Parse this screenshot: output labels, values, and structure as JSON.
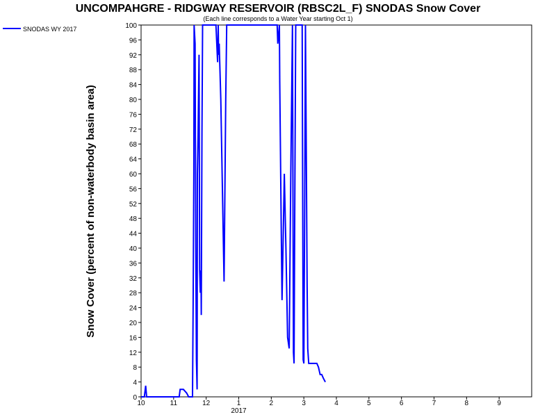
{
  "chart_data": {
    "type": "line",
    "title": "UNCOMPAHGRE - RIDGWAY RESERVOIR (RBSC2L_F) SNODAS Snow Cover",
    "subtitle": "(Each line corresponds to a Water Year starting Oct 1)",
    "ylabel": "Snow Cover (percent of non-waterbody basin area)",
    "xlabel": "",
    "ylim": [
      0,
      100
    ],
    "xlim": [
      0,
      12
    ],
    "x_unit_note": "months since Oct 1 of the water year",
    "x_ticks": [
      {
        "x": 0,
        "label": "10"
      },
      {
        "x": 1,
        "label": "11"
      },
      {
        "x": 2,
        "label": "12"
      },
      {
        "x": 3,
        "label": "1"
      },
      {
        "x": 4,
        "label": "2"
      },
      {
        "x": 5,
        "label": "3"
      },
      {
        "x": 6,
        "label": "4"
      },
      {
        "x": 7,
        "label": "5"
      },
      {
        "x": 8,
        "label": "6"
      },
      {
        "x": 9,
        "label": "7"
      },
      {
        "x": 10,
        "label": "8"
      },
      {
        "x": 11,
        "label": "9"
      }
    ],
    "x_year_label": {
      "x": 3,
      "label": "2017"
    },
    "y_ticks": [
      0,
      4,
      8,
      12,
      16,
      20,
      24,
      28,
      32,
      36,
      40,
      44,
      48,
      52,
      56,
      60,
      64,
      68,
      72,
      76,
      80,
      84,
      88,
      92,
      96,
      100
    ],
    "grid": false,
    "legend": {
      "position": "top-left",
      "entries": [
        "SNODAS WY 2017"
      ]
    },
    "colors": {
      "series": "#0000ff",
      "axis": "#000000",
      "background": "#ffffff"
    },
    "series": [
      {
        "name": "SNODAS WY 2017",
        "points": [
          [
            0.0,
            0
          ],
          [
            0.1,
            0
          ],
          [
            0.14,
            3
          ],
          [
            0.17,
            0
          ],
          [
            0.2,
            0
          ],
          [
            1.0,
            0
          ],
          [
            1.17,
            0
          ],
          [
            1.2,
            2
          ],
          [
            1.3,
            2
          ],
          [
            1.4,
            1
          ],
          [
            1.46,
            0
          ],
          [
            1.58,
            0
          ],
          [
            1.6,
            25
          ],
          [
            1.62,
            60
          ],
          [
            1.63,
            100
          ],
          [
            1.66,
            95
          ],
          [
            1.68,
            40
          ],
          [
            1.7,
            10
          ],
          [
            1.72,
            2
          ],
          [
            1.73,
            60
          ],
          [
            1.75,
            70
          ],
          [
            1.78,
            92
          ],
          [
            1.8,
            34
          ],
          [
            1.82,
            28
          ],
          [
            1.84,
            34
          ],
          [
            1.85,
            22
          ],
          [
            1.87,
            71
          ],
          [
            1.89,
            100
          ],
          [
            2.0,
            100
          ],
          [
            2.3,
            100
          ],
          [
            2.35,
            90
          ],
          [
            2.37,
            100
          ],
          [
            2.38,
            92
          ],
          [
            2.4,
            95
          ],
          [
            2.45,
            80
          ],
          [
            2.5,
            55
          ],
          [
            2.55,
            31
          ],
          [
            2.6,
            80
          ],
          [
            2.63,
            100
          ],
          [
            3.5,
            100
          ],
          [
            4.0,
            100
          ],
          [
            4.18,
            100
          ],
          [
            4.2,
            95
          ],
          [
            4.25,
            100
          ],
          [
            4.26,
            85
          ],
          [
            4.3,
            50
          ],
          [
            4.33,
            26
          ],
          [
            4.36,
            40
          ],
          [
            4.4,
            60
          ],
          [
            4.45,
            40
          ],
          [
            4.5,
            16
          ],
          [
            4.55,
            13
          ],
          [
            4.6,
            60
          ],
          [
            4.65,
            100
          ],
          [
            4.68,
            12
          ],
          [
            4.7,
            9
          ],
          [
            4.72,
            50
          ],
          [
            4.75,
            100
          ],
          [
            4.8,
            100
          ],
          [
            4.85,
            100
          ],
          [
            4.9,
            100
          ],
          [
            4.92,
            100
          ],
          [
            4.95,
            100
          ],
          [
            4.98,
            10
          ],
          [
            5.0,
            9
          ],
          [
            5.03,
            60
          ],
          [
            5.05,
            100
          ],
          [
            5.08,
            60
          ],
          [
            5.1,
            30
          ],
          [
            5.12,
            13
          ],
          [
            5.15,
            9
          ],
          [
            5.4,
            9
          ],
          [
            5.45,
            8
          ],
          [
            5.5,
            6
          ],
          [
            5.55,
            6
          ],
          [
            5.6,
            5
          ],
          [
            5.66,
            4
          ]
        ]
      }
    ]
  }
}
